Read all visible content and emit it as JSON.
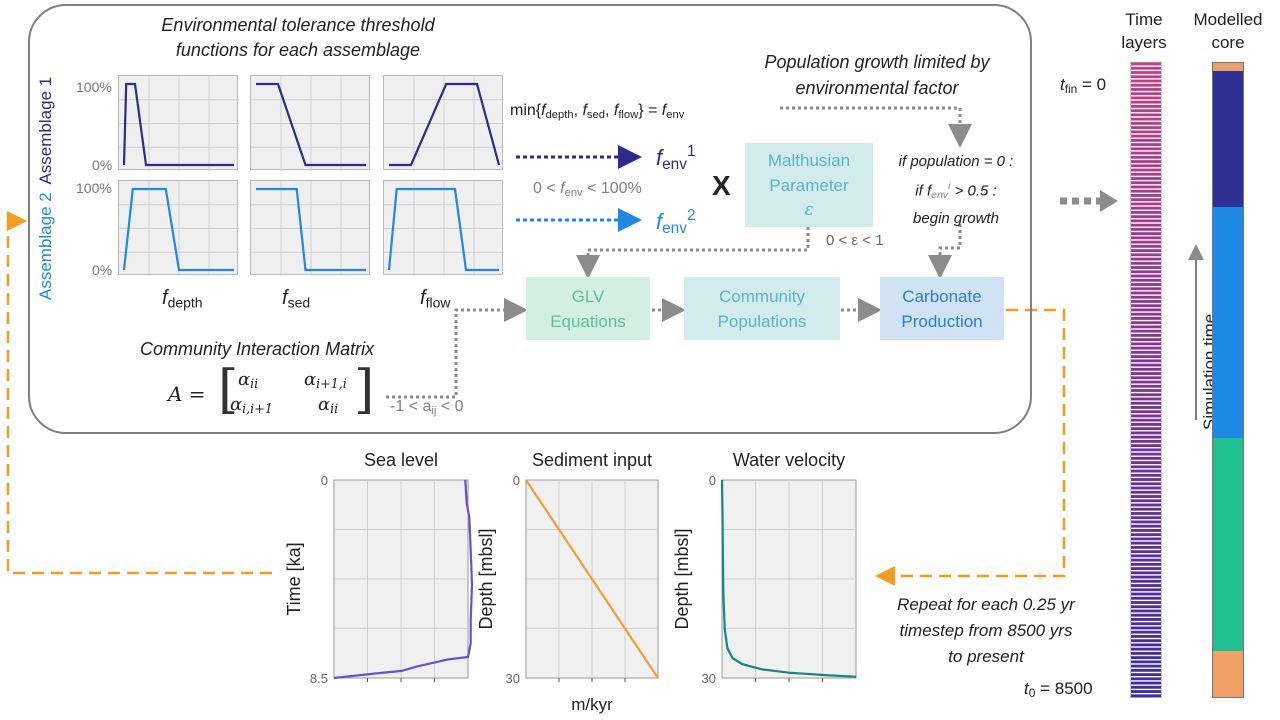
{
  "panel": {
    "tolerance_title_1": "Environmental tolerance threshold",
    "tolerance_title_2": "functions for each assemblage",
    "assemblage1": "Assemblage 1",
    "assemblage2": "Assemblage 2",
    "tick_100": "100%",
    "tick_0": "0%",
    "f_depth": {
      "base": "f",
      "sub": "depth"
    },
    "f_sed": {
      "base": "f",
      "sub": "sed"
    },
    "f_flow": {
      "base": "f",
      "sub": "flow"
    },
    "min_eq": {
      "pre": "min{",
      "f": "f",
      "depth": "depth",
      "sed": "sed",
      "flow": "flow",
      "env": "env",
      "mid": "} = "
    },
    "fenv1": {
      "base": "f",
      "sub": "env",
      "sup": "1"
    },
    "fenv2": {
      "base": "f",
      "sub": "env",
      "sup": "2"
    },
    "fenv_range": {
      "pre": "0 < ",
      "sub": "env",
      "post": " < 100%"
    },
    "times": "X",
    "malthusian_1": "Malthusian",
    "malthusian_2": "Parameter",
    "epsilon": "ε",
    "epsilon_range": "0 < ε < 1",
    "pop_growth_1": "Population growth limited by",
    "pop_growth_2": "environmental factor",
    "cond_1": "if population = 0 :",
    "cond_2": {
      "pre": "if f",
      "sub": "env",
      "sup": "i",
      "post": " > 0.5 :"
    },
    "cond_3": "begin growth",
    "glv_1": "GLV",
    "glv_2": "Equations",
    "community_1": "Community",
    "community_2": "Populations",
    "carbonate_1": "Carbonate",
    "carbonate_2": "Production",
    "cim_title": "Community Interaction Matrix",
    "matrix": {
      "lhs": "A = ",
      "a11": "α",
      "a11_sub": "ii",
      "a12": "α",
      "a12_sub": "i+1,i",
      "a21": "α",
      "a21_sub": "i,i+1",
      "a22": "α",
      "a22_sub": "ii"
    },
    "aij_range": {
      "pre": "-1 < a",
      "sub": "ij",
      "post": " < 0"
    }
  },
  "right": {
    "time_layers_1": "Time",
    "time_layers_2": "layers",
    "modelled_core_1": "Modelled",
    "modelled_core_2": "core",
    "tfin": {
      "base": "t",
      "sub": "fin",
      "post": " = 0"
    },
    "t0": {
      "base": "t",
      "sub": "0",
      "post": " = 8500"
    },
    "simulation_time": "Simulation time",
    "repeat_1": "Repeat for each 0.25 yr",
    "repeat_2": "timestep from 8500 yrs",
    "repeat_3": "to present",
    "core_colors": [
      "#e8a066",
      "#2e3191",
      "#1e88e5",
      "#1fbf8f",
      "#f0a066"
    ],
    "core_fractions": [
      0.012,
      0.215,
      0.365,
      0.335,
      0.073
    ]
  },
  "chart_data": [
    {
      "type": "line",
      "title": "Sea level",
      "ylabel": "Time  [ka]",
      "xlabel": "",
      "y_ticks": [
        "0",
        "8.5"
      ],
      "ylim": [
        0,
        8.5
      ],
      "color": "#6a4fcf",
      "x": [
        0.98,
        0.99,
        1.01,
        1.02,
        1.03,
        1.02,
        1.02,
        1.0,
        0.85,
        0.62,
        0.5,
        0.32,
        0.0
      ],
      "y": [
        0,
        1.0,
        1.6,
        3.0,
        4.5,
        6.0,
        7.0,
        7.6,
        7.7,
        8.0,
        8.2,
        8.3,
        8.5
      ]
    },
    {
      "type": "line",
      "title": "Sediment  input",
      "ylabel": "Depth [mbsl]",
      "xlabel": "m/kyr",
      "y_ticks": [
        "0",
        "30"
      ],
      "ylim": [
        0,
        30
      ],
      "color": "#f39c3e",
      "x": [
        0,
        1
      ],
      "y": [
        0,
        30
      ]
    },
    {
      "type": "line",
      "title": "Water velocity",
      "ylabel": "Depth [mbsl]",
      "xlabel": "",
      "y_ticks": [
        "0",
        "30"
      ],
      "ylim": [
        0,
        30
      ],
      "color": "#12878a",
      "x": [
        0.0,
        0.005,
        0.01,
        0.02,
        0.04,
        0.08,
        0.15,
        0.3,
        0.5,
        0.8,
        1.0
      ],
      "y": [
        0,
        8,
        17,
        22.5,
        25.5,
        27.0,
        27.9,
        28.7,
        29.2,
        29.6,
        29.8
      ]
    }
  ],
  "tolerance_curves": {
    "a1": [
      [
        [
          0.0,
          0.0
        ],
        [
          0.02,
          1.0
        ],
        [
          0.1,
          1.0
        ],
        [
          0.2,
          0.0
        ],
        [
          1.0,
          0.0
        ]
      ],
      [
        [
          0.0,
          1.0
        ],
        [
          0.2,
          1.0
        ],
        [
          0.45,
          0.0
        ],
        [
          1.0,
          0.0
        ]
      ],
      [
        [
          0.0,
          0.0
        ],
        [
          0.2,
          0.0
        ],
        [
          0.52,
          1.0
        ],
        [
          0.8,
          1.0
        ],
        [
          1.0,
          0.0
        ]
      ]
    ],
    "a2": [
      [
        [
          0.0,
          0.0
        ],
        [
          0.08,
          1.0
        ],
        [
          0.38,
          1.0
        ],
        [
          0.5,
          0.0
        ],
        [
          1.0,
          0.0
        ]
      ],
      [
        [
          0.0,
          1.0
        ],
        [
          0.37,
          1.0
        ],
        [
          0.45,
          0.0
        ],
        [
          1.0,
          0.0
        ]
      ],
      [
        [
          0.0,
          0.0
        ],
        [
          0.07,
          1.0
        ],
        [
          0.6,
          1.0
        ],
        [
          0.7,
          0.0
        ],
        [
          1.0,
          0.0
        ]
      ]
    ],
    "a1_color": "#2e2b8c",
    "a2_color": "#1e88e5"
  }
}
